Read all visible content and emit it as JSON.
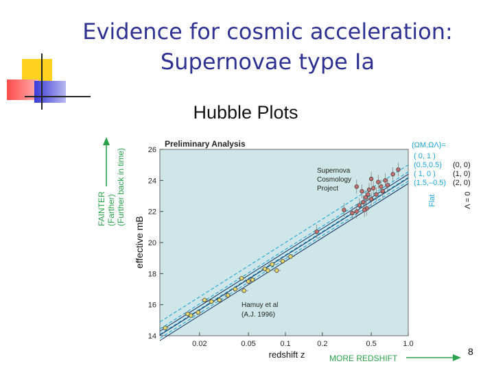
{
  "slide": {
    "title_line1": "Evidence for cosmic acceleration:",
    "title_line2": "Supernovae type Ia",
    "number": "8"
  },
  "figure": {
    "heading": "Hubble Plots",
    "left_annotation": [
      "FAINTER",
      "(Farther)",
      "(Further back in time)"
    ],
    "bottom_annotation": "MORE REDSHIFT",
    "legend_header": "(ΩM,ΩΛ)=",
    "legend_rows": [
      {
        "left": "( 0,   1 )",
        "right": ""
      },
      {
        "left": "(0.5,0.5)",
        "right": "(0, 0)"
      },
      {
        "left": "( 1,   0 )",
        "right": "(1, 0)"
      },
      {
        "left": "(1.5,–0.5)",
        "right": "(2, 0)"
      }
    ],
    "flat_label": "Flat",
    "lambda_label": "Λ = 0",
    "colors": {
      "accent": "#2aa14b",
      "cyan": "#1aa5d6",
      "title": "#2e3192",
      "plot_bg": "#cfe6e8"
    }
  },
  "chart_data": {
    "type": "scatter",
    "title": "Preliminary Analysis",
    "xlabel": "redshift  z",
    "ylabel": "effective  mB",
    "x_scale": "log",
    "xlim": [
      0.0095,
      1.0
    ],
    "ylim": [
      14,
      26
    ],
    "x_ticks": [
      0.02,
      0.05,
      0.1,
      0.2,
      0.5,
      1.0
    ],
    "x_tick_labels": [
      "0.02",
      "0.05",
      "0.1",
      "0.2",
      "0.5",
      "1.0"
    ],
    "y_ticks": [
      14,
      16,
      18,
      20,
      22,
      24,
      26
    ],
    "annotations": [
      {
        "lines": [
          "Supernova",
          "Cosmology",
          "Project"
        ]
      },
      {
        "lines": [
          "Hamuy et al",
          "(A.J. 1996)"
        ]
      }
    ],
    "series": [
      {
        "name": "Hamuy et al (A.J. 1996)",
        "points": [
          {
            "x": 0.0105,
            "y": 14.5
          },
          {
            "x": 0.016,
            "y": 15.4
          },
          {
            "x": 0.017,
            "y": 15.3
          },
          {
            "x": 0.0195,
            "y": 15.5
          },
          {
            "x": 0.022,
            "y": 16.3
          },
          {
            "x": 0.025,
            "y": 16.2
          },
          {
            "x": 0.029,
            "y": 16.3
          },
          {
            "x": 0.034,
            "y": 16.6
          },
          {
            "x": 0.039,
            "y": 17.0
          },
          {
            "x": 0.044,
            "y": 17.7
          },
          {
            "x": 0.046,
            "y": 16.9
          },
          {
            "x": 0.05,
            "y": 17.5
          },
          {
            "x": 0.054,
            "y": 17.6
          },
          {
            "x": 0.068,
            "y": 18.3
          },
          {
            "x": 0.072,
            "y": 18.2
          },
          {
            "x": 0.078,
            "y": 18.6
          },
          {
            "x": 0.085,
            "y": 18.2
          },
          {
            "x": 0.095,
            "y": 18.8
          },
          {
            "x": 0.11,
            "y": 19.1
          }
        ]
      },
      {
        "name": "Supernova Cosmology Project",
        "points": [
          {
            "x": 0.18,
            "y": 20.7
          },
          {
            "x": 0.3,
            "y": 22.1
          },
          {
            "x": 0.38,
            "y": 22.0
          },
          {
            "x": 0.4,
            "y": 22.4
          },
          {
            "x": 0.42,
            "y": 23.3
          },
          {
            "x": 0.43,
            "y": 22.6
          },
          {
            "x": 0.45,
            "y": 22.9
          },
          {
            "x": 0.46,
            "y": 22.2
          },
          {
            "x": 0.48,
            "y": 23.4
          },
          {
            "x": 0.5,
            "y": 22.8
          },
          {
            "x": 0.52,
            "y": 23.5
          },
          {
            "x": 0.55,
            "y": 23.1
          },
          {
            "x": 0.57,
            "y": 23.9
          },
          {
            "x": 0.6,
            "y": 23.6
          },
          {
            "x": 0.62,
            "y": 23.3
          },
          {
            "x": 0.65,
            "y": 24.0
          },
          {
            "x": 0.68,
            "y": 23.7
          },
          {
            "x": 0.75,
            "y": 24.4
          },
          {
            "x": 0.83,
            "y": 24.7
          },
          {
            "x": 0.38,
            "y": 23.6
          },
          {
            "x": 0.5,
            "y": 24.1
          },
          {
            "x": 0.44,
            "y": 22.1
          },
          {
            "x": 0.35,
            "y": 21.9
          },
          {
            "x": 0.47,
            "y": 23.1
          }
        ]
      }
    ],
    "models": [
      {
        "params": "(0,1)",
        "style": "dashed",
        "at_z1": 25.0
      },
      {
        "params": "(0.5,0.5)",
        "style": "dashed",
        "at_z1": 24.55
      },
      {
        "params": "(1,0)",
        "style": "dashed",
        "at_z1": 24.2
      },
      {
        "params": "(1.5,-0.5)",
        "style": "dashed",
        "at_z1": 23.95
      },
      {
        "params": "(0,0)",
        "style": "solid",
        "at_z1": 24.4
      },
      {
        "params": "(1,0)",
        "style": "solid",
        "at_z1": 24.15
      },
      {
        "params": "(2,0)",
        "style": "solid",
        "at_z1": 23.8
      }
    ]
  }
}
